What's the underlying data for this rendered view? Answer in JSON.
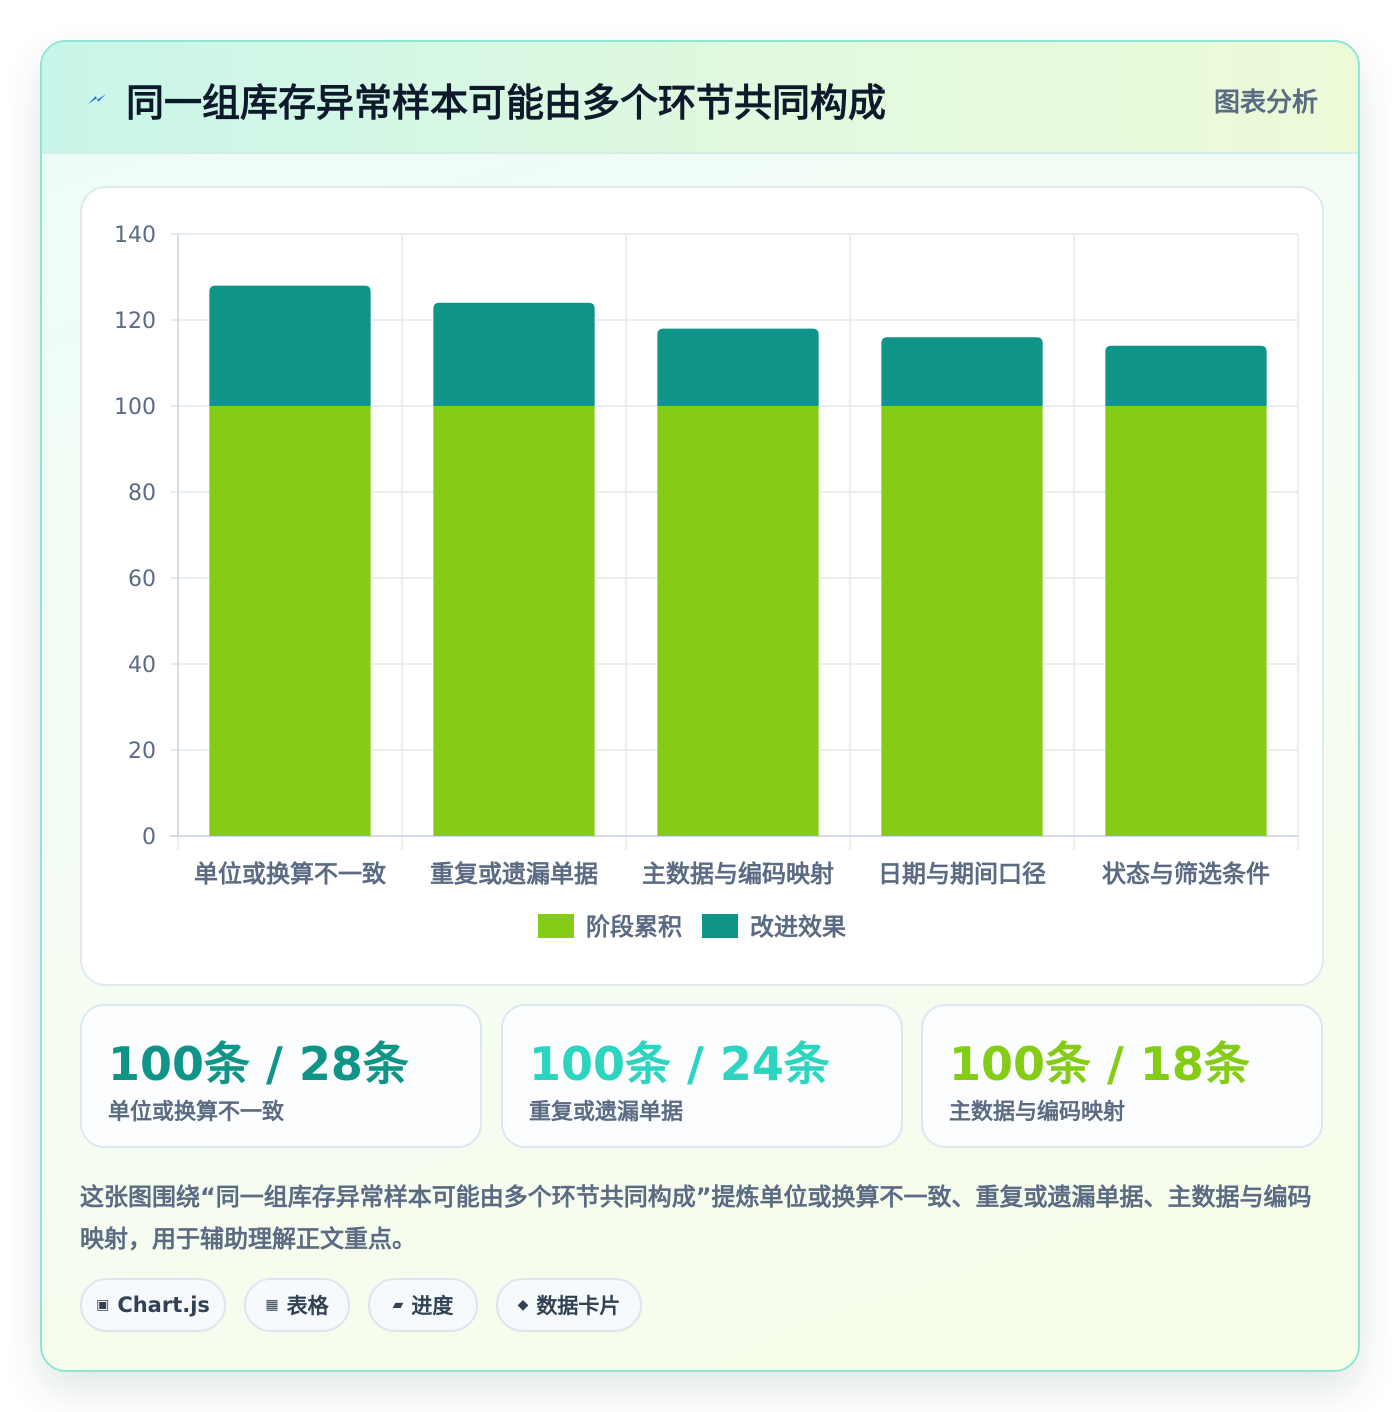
{
  "header": {
    "icon": "lightning-bolt-icon",
    "title": "同一组库存异常样本可能由多个环节共同构成",
    "tag": "图表分析"
  },
  "chart_data": {
    "type": "bar",
    "stacked": true,
    "categories": [
      "单位或换算不一致",
      "重复或遗漏单据",
      "主数据与编码映射",
      "日期与期间口径",
      "状态与筛选条件"
    ],
    "series": [
      {
        "name": "阶段累积",
        "values": [
          100,
          100,
          100,
          100,
          100
        ],
        "color": "#84cc16"
      },
      {
        "name": "改进效果",
        "values": [
          28,
          24,
          18,
          16,
          14
        ],
        "color": "#0f9488"
      }
    ],
    "ylim": [
      0,
      140
    ],
    "yticks": [
      0,
      20,
      40,
      60,
      80,
      100,
      120,
      140
    ],
    "grid": true,
    "legend_position": "bottom"
  },
  "kpis": [
    {
      "value": "100条 / 28条",
      "label": "单位或换算不一致",
      "color": "#0f9488"
    },
    {
      "value": "100条 / 24条",
      "label": "重复或遗漏单据",
      "color": "#2dd4bf"
    },
    {
      "value": "100条 / 18条",
      "label": "主数据与编码映射",
      "color": "#84cc16"
    }
  ],
  "description": "这张图围绕“同一组库存异常样本可能由多个环节共同构成”提炼单位或换算不一致、重复或遗漏单据、主数据与编码映射，用于辅助理解正文重点。",
  "chips": [
    {
      "icon": "▣",
      "icon_name": "chart-icon",
      "label": "Chart.js"
    },
    {
      "icon": "▦",
      "icon_name": "table-icon",
      "label": "表格"
    },
    {
      "icon": "▰",
      "icon_name": "progress-icon",
      "label": "进度"
    },
    {
      "icon": "◆",
      "icon_name": "diamond-icon",
      "label": "数据卡片"
    }
  ]
}
